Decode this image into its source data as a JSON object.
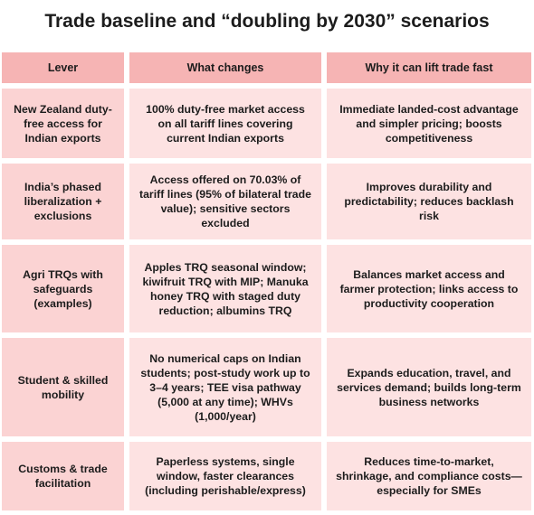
{
  "title": "Trade baseline and “doubling by 2030” scenarios",
  "table": {
    "header": [
      "Lever",
      "What changes",
      "Why it can lift trade fast"
    ],
    "rows": [
      [
        "New Zealand duty-free access for Indian exports",
        "100% duty-free market access on all tariff lines covering current Indian exports",
        "Immediate landed-cost advantage and simpler pricing; boosts competitiveness"
      ],
      [
        "India’s phased liberalization + exclusions",
        "Access offered on 70.03% of tariff lines (95% of bilateral trade value); sensitive sectors excluded",
        "Improves durability and predictability; reduces backlash risk"
      ],
      [
        "Agri TRQs with safeguards (examples)",
        "Apples TRQ seasonal window; kiwifruit TRQ with MIP; Manuka honey TRQ with staged duty reduction; albumins TRQ",
        "Balances market access and farmer protection; links access to productivity cooperation"
      ],
      [
        "Student & skilled mobility",
        "No numerical caps on Indian students; post-study work up to 3–4 years; TEE visa pathway (5,000 at any time); WHVs (1,000/year)",
        "Expands education, travel, and services demand; builds long-term business networks"
      ],
      [
        "Customs & trade facilitation",
        "Paperless systems, single window, faster clearances (including perishable/express)",
        "Reduces time-to-market, shrinkage, and compliance costs—especially for SMEs"
      ]
    ]
  }
}
